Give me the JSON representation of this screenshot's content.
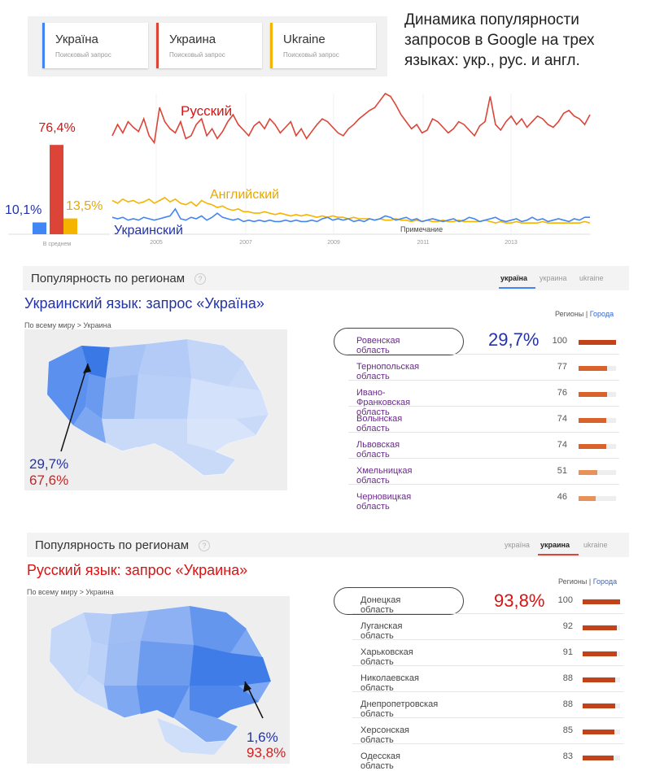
{
  "legend": [
    {
      "title": "Україна",
      "subtitle": "Поисковый запрос",
      "color": "#4285f4"
    },
    {
      "title": "Украина",
      "subtitle": "Поисковый запрос",
      "color": "#db4437"
    },
    {
      "title": "Ukraine",
      "subtitle": "Поисковый запрос",
      "color": "#f4b400"
    }
  ],
  "caption": "Динамика популярности запросов в Google на трех языках: укр., рус. и англ.",
  "chart_data": [
    {
      "type": "bar",
      "categories": [
        "Україна",
        "Украина",
        "Ukraine"
      ],
      "values": [
        10.1,
        76.4,
        13.5
      ],
      "value_labels": [
        "10,1%",
        "76,4%",
        "13,5%"
      ],
      "colors": [
        "#4285f4",
        "#db4437",
        "#f4b400"
      ],
      "xlabel": "В среднем"
    },
    {
      "type": "line",
      "x_ticks": [
        "2005",
        "2007",
        "2009",
        "2011",
        "2013"
      ],
      "annotations": {
        "russian": "Русский",
        "english": "Английский",
        "ukrainian": "Украинский",
        "note": "Примечание"
      },
      "series": [
        {
          "name": "Русский",
          "color": "#db4437",
          "values": [
            70,
            78,
            72,
            80,
            76,
            73,
            82,
            70,
            65,
            90,
            80,
            75,
            72,
            80,
            68,
            70,
            78,
            82,
            70,
            75,
            68,
            73,
            80,
            85,
            78,
            74,
            70,
            77,
            80,
            75,
            82,
            78,
            72,
            76,
            80,
            70,
            75,
            68,
            73,
            78,
            82,
            80,
            76,
            72,
            70,
            75,
            78,
            82,
            85,
            88,
            90,
            95,
            100,
            98,
            92,
            85,
            80,
            75,
            78,
            72,
            74,
            82,
            80,
            76,
            72,
            75,
            80,
            78,
            74,
            70,
            77,
            80,
            98,
            78,
            74,
            80,
            84,
            78,
            82,
            76,
            80,
            84,
            82,
            78,
            76,
            80,
            86,
            88,
            84,
            82,
            78,
            85
          ]
        },
        {
          "name": "Английский",
          "color": "#f4b400",
          "values": [
            24,
            22,
            25,
            23,
            24,
            22,
            23,
            25,
            22,
            24,
            26,
            23,
            25,
            22,
            21,
            23,
            20,
            24,
            22,
            21,
            19,
            20,
            18,
            17,
            18,
            16,
            16,
            15,
            15,
            16,
            15,
            14,
            15,
            14,
            13,
            14,
            13,
            14,
            13,
            12,
            13,
            12,
            13,
            12,
            12,
            11,
            12,
            11,
            11,
            11,
            10,
            11,
            10,
            10,
            11,
            10,
            10,
            9,
            10,
            9,
            10,
            9,
            9,
            10,
            9,
            9,
            10,
            9,
            9,
            9,
            9,
            10,
            9,
            8,
            9,
            8,
            8,
            9,
            8,
            8,
            8,
            8,
            9,
            8,
            8,
            8,
            8,
            8,
            8,
            8,
            9,
            8
          ]
        },
        {
          "name": "Украинский",
          "color": "#4285f4",
          "values": [
            12,
            11,
            12,
            10,
            11,
            10,
            12,
            11,
            10,
            11,
            12,
            13,
            18,
            11,
            10,
            12,
            11,
            13,
            10,
            12,
            15,
            12,
            11,
            10,
            11,
            9,
            10,
            9,
            10,
            9,
            10,
            9,
            9,
            10,
            9,
            10,
            9,
            9,
            10,
            9,
            11,
            12,
            10,
            11,
            10,
            11,
            9,
            10,
            9,
            11,
            10,
            11,
            13,
            12,
            10,
            11,
            12,
            10,
            11,
            9,
            10,
            11,
            10,
            9,
            10,
            11,
            9,
            10,
            12,
            11,
            9,
            10,
            11,
            12,
            10,
            9,
            10,
            11,
            9,
            10,
            12,
            10,
            11,
            9,
            10,
            11,
            10,
            9,
            11,
            10,
            12,
            12
          ]
        }
      ]
    }
  ],
  "panel1": {
    "title": "Популярность по регионам",
    "tabs": [
      "україна",
      "украина",
      "ukraine"
    ],
    "active_tab": 0,
    "subtitle": "Украинский язык: запрос «Україна»",
    "breadcrumb": "По всему миру > Украина",
    "toggle": {
      "left": "Регионы",
      "sep": "|",
      "right": "Города"
    },
    "highlight_pct": "29,7%",
    "map_label_1": "29,7%",
    "map_label_2": "67,6%",
    "rows": [
      {
        "name": "Ровенская область",
        "value": "100",
        "v": 100
      },
      {
        "name": "Тернопольская область",
        "value": "77",
        "v": 77
      },
      {
        "name": "Ивано-Франковская область",
        "value": "76",
        "v": 76
      },
      {
        "name": "Волынская область",
        "value": "74",
        "v": 74
      },
      {
        "name": "Львовская область",
        "value": "74",
        "v": 74
      },
      {
        "name": "Хмельницкая область",
        "value": "51",
        "v": 51
      },
      {
        "name": "Черновицкая область",
        "value": "46",
        "v": 46
      }
    ]
  },
  "panel2": {
    "title": "Популярность по регионам",
    "tabs": [
      "україна",
      "украина",
      "ukraine"
    ],
    "active_tab": 1,
    "subtitle": "Русский язык: запрос «Украина»",
    "breadcrumb": "По всему миру > Украина",
    "toggle": {
      "left": "Регионы",
      "sep": "|",
      "right": "Города"
    },
    "highlight_pct": "93,8%",
    "map_label_1": "1,6%",
    "map_label_2": "93,8%",
    "rows": [
      {
        "name": "Донецкая область",
        "value": "100",
        "v": 100
      },
      {
        "name": "Луганская область",
        "value": "92",
        "v": 92
      },
      {
        "name": "Харьковская область",
        "value": "91",
        "v": 91
      },
      {
        "name": "Николаевская область",
        "value": "88",
        "v": 88
      },
      {
        "name": "Днепропетровская область",
        "value": "88",
        "v": 88
      },
      {
        "name": "Херсонская область",
        "value": "85",
        "v": 85
      },
      {
        "name": "Одесская область",
        "value": "83",
        "v": 83
      }
    ]
  }
}
